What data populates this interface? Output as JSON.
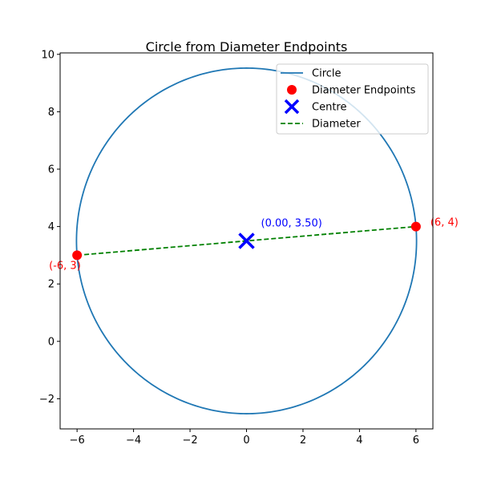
{
  "chart_data": {
    "type": "scatter",
    "title": "Circle from Diameter Endpoints",
    "xlabel": "",
    "ylabel": "",
    "xlim": [
      -6.6,
      6.6
    ],
    "ylim": [
      -3.05,
      10.05
    ],
    "x_ticks": [
      -6,
      -4,
      -2,
      0,
      2,
      4,
      6
    ],
    "x_tick_labels": [
      "−6",
      "−4",
      "−2",
      "0",
      "2",
      "4",
      "6"
    ],
    "y_ticks": [
      -2,
      0,
      2,
      4,
      6,
      8,
      10
    ],
    "y_tick_labels": [
      "−2",
      "0",
      "2",
      "4",
      "6",
      "8",
      "10"
    ],
    "grid": false,
    "legend_position": "top-right",
    "circle": {
      "center": [
        0,
        3.5
      ],
      "radius": 6.0208
    },
    "endpoints": [
      {
        "x": -6,
        "y": 3,
        "label": "(-6, 3)"
      },
      {
        "x": 6,
        "y": 4,
        "label": "(6, 4)"
      }
    ],
    "centre": {
      "x": 0,
      "y": 3.5,
      "label": "(0.00, 3.50)"
    },
    "series": [
      {
        "name": "Circle",
        "kind": "line",
        "color": "#1f77b4",
        "style": "solid"
      },
      {
        "name": "Diameter Endpoints",
        "kind": "marker",
        "color": "#ff0000",
        "marker": "circle"
      },
      {
        "name": "Centre",
        "kind": "marker",
        "color": "#0000ff",
        "marker": "x"
      },
      {
        "name": "Diameter",
        "kind": "line",
        "color": "#008000",
        "style": "dashed"
      }
    ],
    "annotation_colors": {
      "endpoints": "#ff0000",
      "centre": "#0000ff"
    }
  }
}
